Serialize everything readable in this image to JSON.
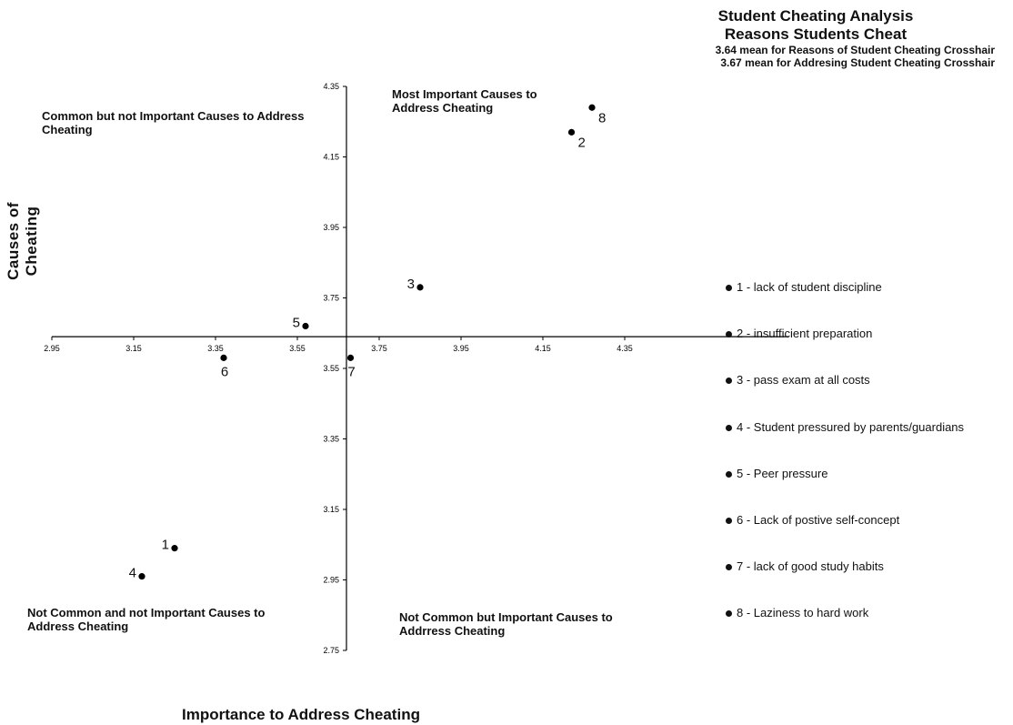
{
  "chart_data": {
    "type": "scatter",
    "title": "Student Cheating Analysis",
    "subtitle": "Reasons Students Cheat",
    "notes": [
      "3.64 mean for Reasons of Student Cheating Crosshair",
      "3.67 mean for Addresing Student Cheating Crosshair"
    ],
    "xlabel": "Importance to Address Cheating",
    "ylabel": "Causes of  Cheating",
    "xlim": [
      2.95,
      4.75
    ],
    "ylim": [
      2.75,
      4.35
    ],
    "x_ticks": [
      "2.95",
      "3.15",
      "3.35",
      "3.55",
      "3.75",
      "3.95",
      "4.15",
      "4.35"
    ],
    "y_ticks": [
      "4.35",
      "4.15",
      "3.95",
      "3.75",
      "3.55",
      "3.35",
      "3.15",
      "2.95",
      "2.75"
    ],
    "crosshair": {
      "x": 3.67,
      "y": 3.64
    },
    "points": [
      {
        "label": "1",
        "x": 3.25,
        "y": 3.04,
        "anchor": "left"
      },
      {
        "label": "2",
        "x": 4.22,
        "y": 4.22,
        "anchor": "below-right"
      },
      {
        "label": "3",
        "x": 3.85,
        "y": 3.78,
        "anchor": "left"
      },
      {
        "label": "4",
        "x": 3.17,
        "y": 2.96,
        "anchor": "left"
      },
      {
        "label": "5",
        "x": 3.57,
        "y": 3.67,
        "anchor": "left"
      },
      {
        "label": "6",
        "x": 3.37,
        "y": 3.58,
        "anchor": "below"
      },
      {
        "label": "7",
        "x": 3.68,
        "y": 3.58,
        "anchor": "below"
      },
      {
        "label": "8",
        "x": 4.27,
        "y": 4.29,
        "anchor": "below-right"
      }
    ],
    "quadrant_labels": {
      "top_left": "Common  but not Important Causes to Address Cheating",
      "top_right": "Most Important Causes to Address Cheating",
      "bottom_left": "Not Common and not Important Causes to Address Cheating",
      "bottom_right": "Not Common but Important Causes to Addrress Cheating"
    },
    "legend": [
      "1 - lack of student discipline",
      "2 - insufficient preparation",
      "3 - pass exam at all costs",
      "4 - Student pressured by parents/guardians",
      "5 - Peer pressure",
      "6 - Lack of postive self-concept",
      "7 - lack of good study habits",
      "8 - Laziness to hard work"
    ],
    "legend_placement": "right",
    "grid": false
  }
}
